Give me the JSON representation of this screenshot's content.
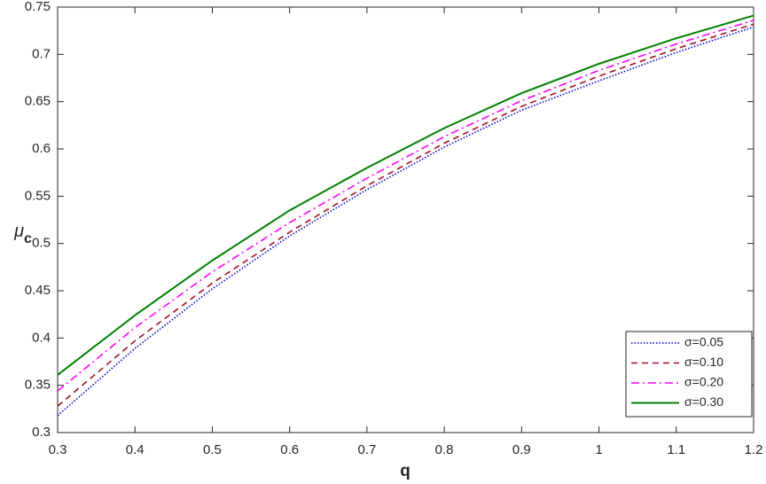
{
  "chart_data": {
    "type": "line",
    "xlabel": "q",
    "ylabel": "μ",
    "ylabel_subscript": "c",
    "x": [
      0.3,
      0.4,
      0.5,
      0.6,
      0.7,
      0.8,
      0.9,
      1.0,
      1.1,
      1.2
    ],
    "series": [
      {
        "name": "σ=0.05",
        "color": "#0000cd",
        "style": "dotted",
        "values": [
          0.318,
          0.389,
          0.452,
          0.508,
          0.557,
          0.602,
          0.641,
          0.672,
          0.702,
          0.729
        ]
      },
      {
        "name": "σ=0.10",
        "color": "#a01020",
        "style": "dashed",
        "values": [
          0.328,
          0.397,
          0.458,
          0.512,
          0.561,
          0.606,
          0.645,
          0.677,
          0.706,
          0.732
        ]
      },
      {
        "name": "σ=0.20",
        "color": "#ff00ff",
        "style": "dashdot",
        "values": [
          0.344,
          0.411,
          0.47,
          0.522,
          0.569,
          0.613,
          0.651,
          0.683,
          0.711,
          0.736
        ]
      },
      {
        "name": "σ=0.30",
        "color": "#008000",
        "style": "solid",
        "values": [
          0.361,
          0.424,
          0.482,
          0.535,
          0.58,
          0.622,
          0.659,
          0.69,
          0.717,
          0.741
        ]
      }
    ],
    "xlim": [
      0.3,
      1.2
    ],
    "xticks": [
      0.3,
      0.4,
      0.5,
      0.6,
      0.7,
      0.8,
      0.9,
      1,
      1.1,
      1.2
    ],
    "ylim": [
      0.3,
      0.75
    ],
    "yticks": [
      0.3,
      0.35,
      0.4,
      0.45,
      0.5,
      0.55,
      0.6,
      0.65,
      0.7,
      0.75
    ],
    "legend": "lower right",
    "grid": false
  }
}
